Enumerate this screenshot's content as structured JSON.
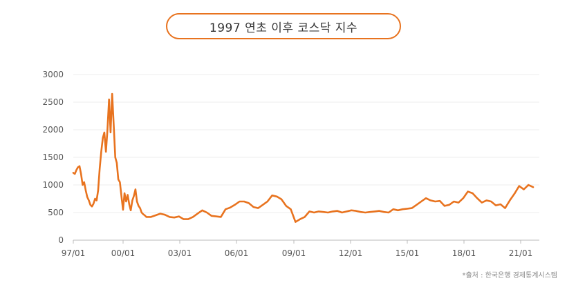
{
  "title": "1997 연초 이후 코스닥 지수",
  "source": "*출처 : 한국은행 경제통계시스템",
  "colors": {
    "line": "#e8731f",
    "grid": "#ececec",
    "axis": "#bbbbbb"
  },
  "chart_data": {
    "type": "line",
    "title": "1997 연초 이후 코스닥 지수",
    "xlabel": "",
    "ylabel": "",
    "ylim": [
      0,
      3000
    ],
    "yticks": [
      0,
      500,
      1000,
      1500,
      2000,
      2500,
      3000
    ],
    "xticks": [
      "97/01",
      "00/01",
      "03/01",
      "06/01",
      "09/01",
      "12/01",
      "15/01",
      "18/01",
      "21/01"
    ],
    "grid": true,
    "legend": "none",
    "series": [
      {
        "x": [
          "1997-01",
          "1997-02",
          "1997-03",
          "1997-04",
          "1997-05",
          "1997-06",
          "1997-07",
          "1997-08",
          "1997-09",
          "1997-10",
          "1997-11",
          "1997-12",
          "1998-01",
          "1998-02",
          "1998-03",
          "1998-04",
          "1998-05",
          "1998-06",
          "1998-07",
          "1998-08",
          "1998-09",
          "1998-10",
          "1998-11",
          "1998-12",
          "1999-01",
          "1999-02",
          "1999-03",
          "1999-04",
          "1999-05",
          "1999-06",
          "1999-07",
          "1999-08",
          "1999-09",
          "1999-10",
          "1999-11",
          "1999-12",
          "2000-01",
          "2000-02",
          "2000-03",
          "2000-04",
          "2000-05",
          "2000-06",
          "2000-07",
          "2000-08",
          "2000-09",
          "2000-10",
          "2000-11",
          "2000-12",
          "2001-03",
          "2001-06",
          "2001-09",
          "2001-12",
          "2002-03",
          "2002-06",
          "2002-09",
          "2002-12",
          "2003-03",
          "2003-06",
          "2003-09",
          "2003-12",
          "2004-03",
          "2004-06",
          "2004-09",
          "2004-12",
          "2005-03",
          "2005-06",
          "2005-09",
          "2005-12",
          "2006-03",
          "2006-06",
          "2006-09",
          "2006-12",
          "2007-03",
          "2007-06",
          "2007-09",
          "2007-12",
          "2008-03",
          "2008-06",
          "2008-09",
          "2008-12",
          "2009-03",
          "2009-06",
          "2009-09",
          "2009-12",
          "2010-03",
          "2010-06",
          "2010-09",
          "2010-12",
          "2011-03",
          "2011-06",
          "2011-09",
          "2011-12",
          "2012-03",
          "2012-06",
          "2012-09",
          "2012-12",
          "2013-03",
          "2013-06",
          "2013-09",
          "2013-12",
          "2014-03",
          "2014-06",
          "2014-09",
          "2014-12",
          "2015-03",
          "2015-06",
          "2015-09",
          "2015-12",
          "2016-03",
          "2016-06",
          "2016-09",
          "2016-12",
          "2017-03",
          "2017-06",
          "2017-09",
          "2017-12",
          "2018-03",
          "2018-06",
          "2018-09",
          "2018-12",
          "2019-03",
          "2019-06",
          "2019-09",
          "2019-12",
          "2020-03",
          "2020-06",
          "2020-09",
          "2020-12",
          "2021-03",
          "2021-06",
          "2021-09"
        ],
        "y": [
          1220,
          1200,
          1270,
          1320,
          1340,
          1200,
          1000,
          1050,
          900,
          780,
          720,
          640,
          610,
          660,
          750,
          720,
          900,
          1300,
          1600,
          1850,
          1950,
          1600,
          2000,
          2550,
          1950,
          2650,
          2100,
          1500,
          1400,
          1100,
          1050,
          800,
          550,
          850,
          700,
          820,
          650,
          540,
          720,
          800,
          920,
          700,
          620,
          580,
          500,
          470,
          450,
          420,
          420,
          450,
          480,
          460,
          420,
          410,
          430,
          380,
          380,
          420,
          480,
          540,
          500,
          440,
          430,
          420,
          560,
          590,
          640,
          700,
          700,
          670,
          600,
          580,
          640,
          700,
          810,
          790,
          740,
          620,
          560,
          330,
          380,
          420,
          520,
          500,
          520,
          510,
          500,
          520,
          530,
          500,
          520,
          540,
          530,
          510,
          500,
          510,
          520,
          530,
          510,
          500,
          560,
          540,
          560,
          570,
          580,
          640,
          700,
          760,
          720,
          700,
          710,
          620,
          640,
          700,
          680,
          760,
          880,
          850,
          760,
          680,
          720,
          700,
          630,
          650,
          580,
          720,
          840,
          980,
          920,
          1000,
          960
        ]
      }
    ]
  }
}
